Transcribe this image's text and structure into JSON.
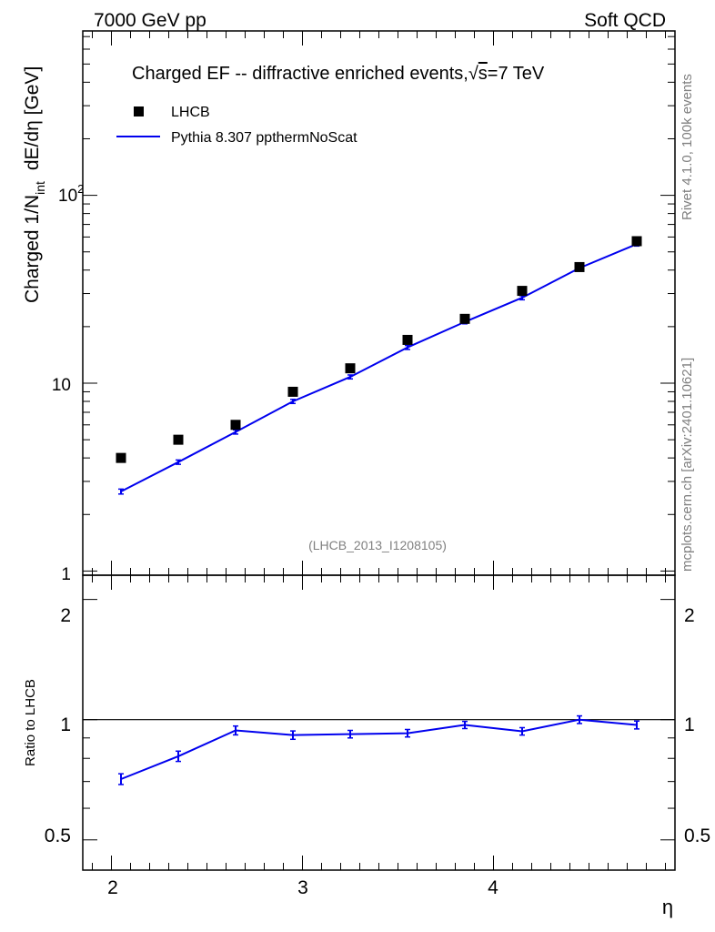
{
  "header": {
    "left": "7000 GeV pp",
    "right": "Soft QCD"
  },
  "side_labels": {
    "rivet": "Rivet 4.1.0,  100k events",
    "mcplots": "mcplots.cern.ch [arXiv:2401.10621]"
  },
  "chart_data": {
    "type": "scatter",
    "title": "Charged EF -- diffractive enriched events, √s=7 TeV",
    "title_parts": {
      "prefix": "Charged EF -- diffractive enriched events,",
      "sqrt": "√",
      "s": "s",
      "suffix": "=7 TeV"
    },
    "xlabel": "η",
    "ylabel": "Charged 1/N_int  dE/dη [GeV]",
    "ylabel_parts": {
      "a": "Charged 1/N",
      "sub": "int",
      "b": "dE/dη [GeV]"
    },
    "ratio_ylabel": "Ratio to LHCB",
    "analysis_id": "(LHCB_2013_I1208105)",
    "xlim": [
      1.85,
      4.95
    ],
    "ylim": [
      0.95,
      750
    ],
    "yscale": "log",
    "ratio_ylim": [
      0.42,
      2.3
    ],
    "ratio_yscale": "log",
    "x_ticks": [
      2,
      3,
      4
    ],
    "x_tick_labels": [
      "2",
      "3",
      "4"
    ],
    "y_tick_labels": {
      "1": "1",
      "10": "10",
      "100_base": "10",
      "100_exp": "2"
    },
    "ratio_tick_labels": [
      "0.5",
      "1",
      "2"
    ],
    "ratio_ticks": [
      0.5,
      1,
      2
    ],
    "legend": {
      "placement": "top-left",
      "entries": [
        "LHCB",
        "Pythia 8.307 ppthermNoScat"
      ]
    },
    "x": [
      2.05,
      2.35,
      2.65,
      2.95,
      3.25,
      3.55,
      3.85,
      4.15,
      4.45,
      4.75
    ],
    "series": [
      {
        "name": "LHCB",
        "marker": "square",
        "color": "#000000",
        "values": [
          4.0,
          5.0,
          6.0,
          9.0,
          12.0,
          17.0,
          22.0,
          31.0,
          41.5,
          57.0
        ]
      },
      {
        "name": "Pythia 8.307 ppthermNoScat",
        "marker": "line",
        "color": "#0000ee",
        "values": [
          2.65,
          3.8,
          5.5,
          8.0,
          10.8,
          15.5,
          21.2,
          28.5,
          41.0,
          55.0
        ],
        "errors": [
          0.08,
          0.1,
          0.14,
          0.2,
          0.26,
          0.38,
          0.5,
          0.7,
          1.0,
          1.3
        ]
      }
    ],
    "ratio": {
      "values": [
        0.71,
        0.81,
        0.94,
        0.915,
        0.92,
        0.925,
        0.97,
        0.935,
        1.0,
        0.97
      ],
      "errors": [
        0.022,
        0.024,
        0.024,
        0.022,
        0.02,
        0.02,
        0.02,
        0.02,
        0.022,
        0.022
      ]
    }
  }
}
